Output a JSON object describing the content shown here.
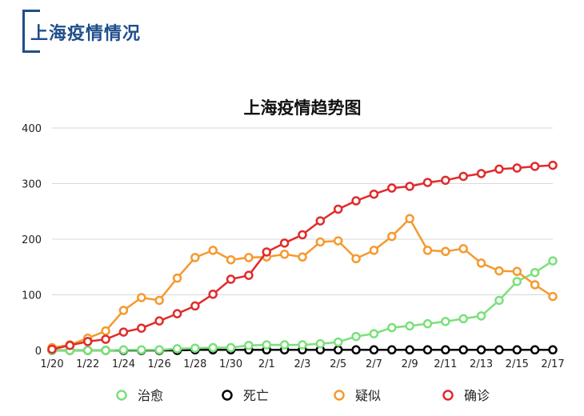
{
  "header": {
    "title": "上海疫情情况"
  },
  "colors": {
    "accent": "#1f4e8c",
    "cured": "#7be07b",
    "death": "#000000",
    "suspected": "#f59a2e",
    "confirmed": "#e02b2b",
    "grid": "#d9d9d9"
  },
  "chart_data": {
    "type": "line",
    "title": "上海疫情趋势图",
    "xlabel": "",
    "ylabel": "",
    "ylim": [
      0,
      400
    ],
    "yticks": [
      "0",
      "100",
      "200",
      "300",
      "400"
    ],
    "x": [
      "1/20",
      "1/21",
      "1/22",
      "1/23",
      "1/24",
      "1/25",
      "1/26",
      "1/27",
      "1/28",
      "1/29",
      "1/30",
      "1/31",
      "2/1",
      "2/2",
      "2/3",
      "2/4",
      "2/5",
      "2/6",
      "2/7",
      "2/8",
      "2/9",
      "2/10",
      "2/11",
      "2/12",
      "2/13",
      "2/14",
      "2/15",
      "2/16",
      "2/17"
    ],
    "xtick_labels": [
      "1/20",
      "1/22",
      "1/24",
      "1/26",
      "1/28",
      "1/30",
      "2/1",
      "2/3",
      "2/5",
      "2/7",
      "2/9",
      "2/11",
      "2/13",
      "2/15",
      "2/17"
    ],
    "grid": true,
    "legend_position": "bottom",
    "series": [
      {
        "name": "治愈",
        "color": "#7be07b",
        "values": [
          0,
          0,
          0,
          0,
          1,
          1,
          1,
          3,
          4,
          5,
          5,
          9,
          10,
          10,
          10,
          12,
          15,
          25,
          30,
          41,
          44,
          48,
          52,
          57,
          62,
          90,
          124,
          140,
          161
        ]
      },
      {
        "name": "死亡",
        "color": "#000000",
        "values": [
          0,
          0,
          0,
          0,
          0,
          0,
          0,
          0,
          1,
          1,
          1,
          1,
          1,
          1,
          1,
          1,
          1,
          1,
          1,
          1,
          1,
          1,
          1,
          1,
          1,
          1,
          1,
          1,
          1
        ]
      },
      {
        "name": "疑似",
        "color": "#f59a2e",
        "values": [
          5,
          10,
          22,
          35,
          72,
          95,
          90,
          130,
          167,
          180,
          163,
          167,
          168,
          173,
          168,
          195,
          197,
          165,
          180,
          205,
          237,
          180,
          178,
          183,
          157,
          143,
          142,
          118,
          97
        ]
      },
      {
        "name": "确诊",
        "color": "#e02b2b",
        "values": [
          2,
          9,
          16,
          20,
          33,
          40,
          53,
          66,
          80,
          101,
          128,
          135,
          177,
          193,
          208,
          233,
          254,
          269,
          281,
          292,
          295,
          302,
          306,
          313,
          318,
          326,
          328,
          331,
          333
        ]
      }
    ]
  }
}
